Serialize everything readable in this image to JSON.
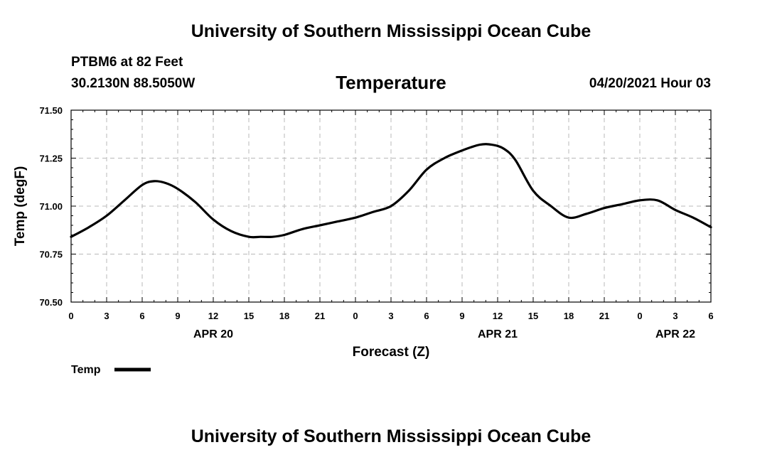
{
  "header": {
    "title": "University of Southern Mississippi Ocean Cube",
    "station": "PTBM6 at 82 Feet",
    "coordinates": "30.2130N  88.5050W",
    "parameter": "Temperature",
    "datetime": "04/20/2021 Hour 03"
  },
  "footer": {
    "title": "University of Southern Mississippi Ocean Cube"
  },
  "chart_data": {
    "type": "line",
    "title": "Temperature",
    "xlabel": "Forecast (Z)",
    "ylabel": "Temp (degF)",
    "xlim": [
      0,
      54
    ],
    "ylim": [
      70.5,
      71.5
    ],
    "x_tick_values": [
      0,
      3,
      6,
      9,
      12,
      15,
      18,
      21,
      24,
      27,
      30,
      33,
      36,
      39,
      42,
      45,
      48,
      51,
      54
    ],
    "x_tick_labels": [
      "0",
      "3",
      "6",
      "9",
      "12",
      "15",
      "18",
      "21",
      "0",
      "3",
      "6",
      "9",
      "12",
      "15",
      "18",
      "21",
      "0",
      "3",
      "6"
    ],
    "y_tick_values": [
      70.5,
      70.75,
      71.0,
      71.25,
      71.5
    ],
    "y_tick_labels": [
      "70.50",
      "70.75",
      "71.00",
      "71.25",
      "71.50"
    ],
    "day_labels": [
      {
        "label": "APR 20",
        "x": 12
      },
      {
        "label": "APR 21",
        "x": 36
      },
      {
        "label": "APR 22",
        "x": 51
      }
    ],
    "grid": true,
    "legend_position": "bottom-left",
    "series": [
      {
        "name": "Temp",
        "color": "#000000",
        "x": [
          0,
          1.5,
          3,
          4.5,
          6,
          7,
          8,
          9,
          10.5,
          12,
          13.5,
          15,
          16,
          17,
          18,
          19.5,
          21,
          22.5,
          24,
          25.5,
          27,
          28.5,
          30,
          31.5,
          33,
          34.5,
          35.5,
          36.5,
          37.5,
          39,
          40.5,
          42,
          43.5,
          45,
          46.5,
          48,
          49.5,
          51,
          52.5,
          54
        ],
        "values": [
          70.84,
          70.89,
          70.95,
          71.03,
          71.11,
          71.13,
          71.12,
          71.09,
          71.02,
          70.93,
          70.87,
          70.84,
          70.84,
          70.84,
          70.85,
          70.88,
          70.9,
          70.92,
          70.94,
          70.97,
          71.0,
          71.08,
          71.19,
          71.25,
          71.29,
          71.32,
          71.32,
          71.3,
          71.24,
          71.08,
          71.0,
          70.94,
          70.96,
          70.99,
          71.01,
          71.03,
          71.03,
          70.98,
          70.94,
          70.89
        ]
      }
    ]
  }
}
